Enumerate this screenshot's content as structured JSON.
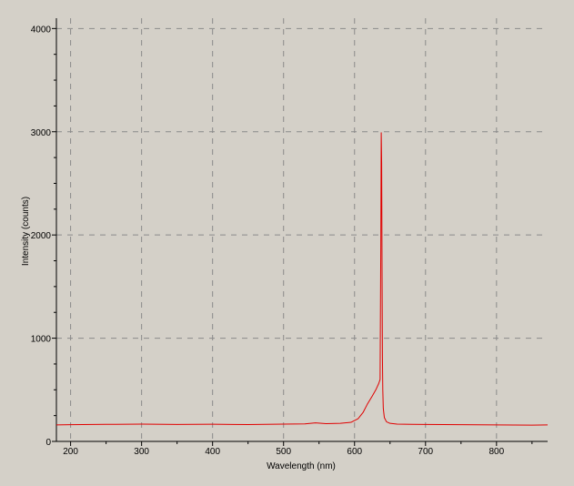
{
  "chart_data": {
    "type": "line",
    "xlabel": "Wavelength (nm)",
    "ylabel": "Intensity (counts)",
    "xlim": [
      180,
      872
    ],
    "ylim": [
      0,
      4100
    ],
    "x_ticks": [
      200,
      300,
      400,
      500,
      600,
      700,
      800
    ],
    "y_ticks": [
      0,
      1000,
      2000,
      3000,
      4000
    ],
    "grid": true,
    "colors": {
      "background": "#d4d0c8",
      "series": "#e00000",
      "grid": "#8a8a8a",
      "axis": "#000000"
    },
    "series": [
      {
        "x": [
          180,
          200,
          250,
          300,
          350,
          400,
          450,
          500,
          530,
          545,
          560,
          580,
          595,
          605,
          612,
          618,
          625,
          630,
          634,
          636,
          637,
          637.6,
          638.2,
          638.8,
          639.3,
          639.8,
          640.5,
          642,
          645,
          650,
          660,
          680,
          700,
          750,
          800,
          850,
          872
        ],
        "y": [
          160,
          162,
          165,
          168,
          164,
          166,
          163,
          168,
          170,
          180,
          172,
          175,
          185,
          220,
          280,
          360,
          440,
          500,
          560,
          600,
          1900,
          2990,
          2700,
          1600,
          820,
          500,
          320,
          230,
          190,
          175,
          168,
          165,
          164,
          162,
          160,
          158,
          160
        ]
      }
    ]
  }
}
